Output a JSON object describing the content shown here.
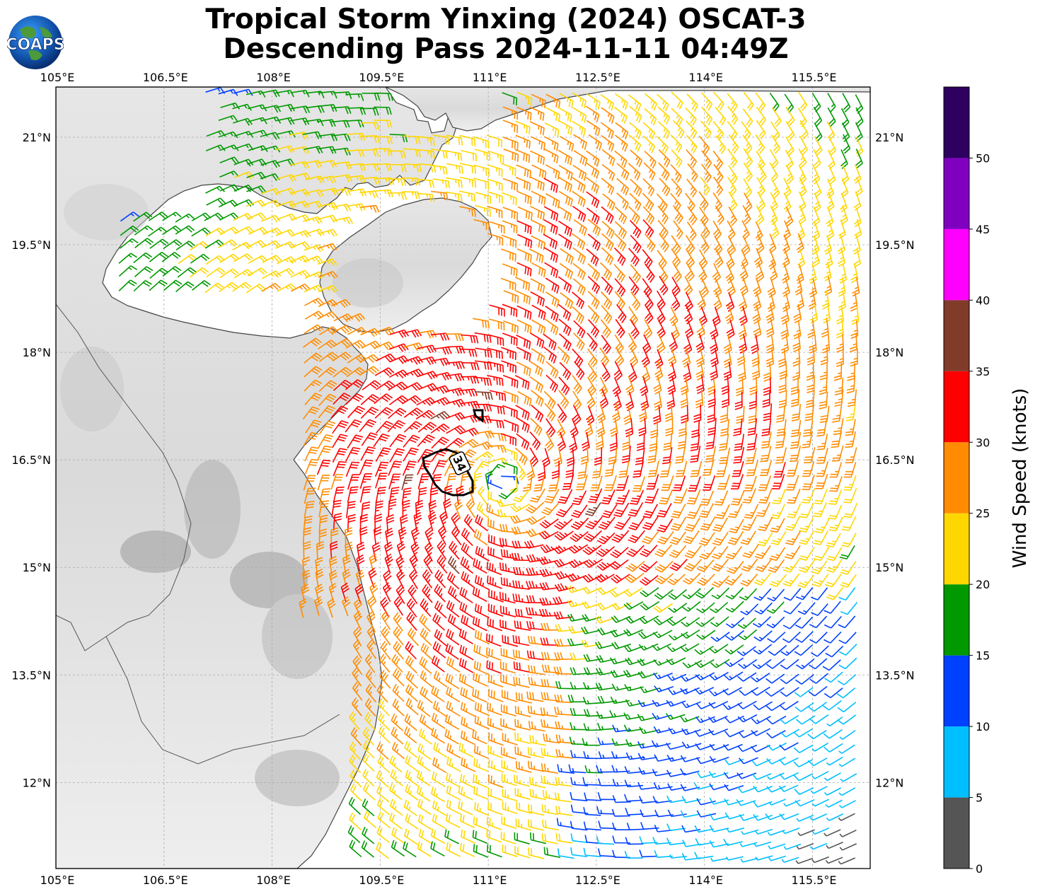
{
  "header": {
    "title_line1": "Tropical Storm Yinxing (2024) OSCAT-3",
    "title_line2": "Descending Pass 2024-11-11 04:49Z",
    "logo_text": "COAPS"
  },
  "map": {
    "lon_ticks": [
      "105°E",
      "106.5°E",
      "108°E",
      "109.5°E",
      "111°E",
      "112.5°E",
      "114°E",
      "115.5°E"
    ],
    "lat_ticks": [
      "21°N",
      "19.5°N",
      "18°N",
      "16.5°N",
      "15°N",
      "13.5°N",
      "12°N"
    ],
    "lon_range": [
      105,
      116.3
    ],
    "lat_range": [
      10.8,
      21.7
    ],
    "storm_center": {
      "lon": 111.2,
      "lat": 16.2
    },
    "contour_label": "34",
    "gridlines": true
  },
  "colorbar": {
    "label": "Wind Speed (knots)",
    "ticks": [
      "0",
      "5",
      "10",
      "15",
      "20",
      "25",
      "30",
      "35",
      "40",
      "45",
      "50"
    ],
    "bins": [
      {
        "min": 0,
        "max": 5,
        "color": "#555555"
      },
      {
        "min": 5,
        "max": 10,
        "color": "#00bfff"
      },
      {
        "min": 10,
        "max": 15,
        "color": "#0040ff"
      },
      {
        "min": 15,
        "max": 20,
        "color": "#009900"
      },
      {
        "min": 20,
        "max": 25,
        "color": "#ffd700"
      },
      {
        "min": 25,
        "max": 30,
        "color": "#ff8c00"
      },
      {
        "min": 30,
        "max": 35,
        "color": "#ff0000"
      },
      {
        "min": 35,
        "max": 40,
        "color": "#803c28"
      },
      {
        "min": 40,
        "max": 45,
        "color": "#ff00ff"
      },
      {
        "min": 45,
        "max": 50,
        "color": "#8000c0"
      },
      {
        "min": 50,
        "max": 55,
        "color": "#2e0060"
      }
    ]
  }
}
